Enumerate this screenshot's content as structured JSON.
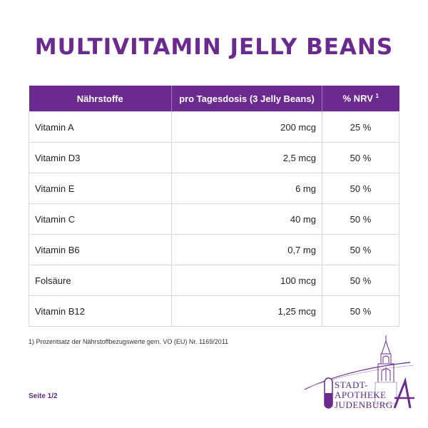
{
  "title": "MULTIVITAMIN JELLY BEANS",
  "table": {
    "headers": [
      "Nährstoffe",
      "pro Tagesdosis (3 Jelly Beans)",
      "% NRV"
    ],
    "header_sup": "1",
    "rows": [
      {
        "name": "Vitamin A",
        "amount": "200 mcg",
        "nrv": "25 %"
      },
      {
        "name": "Vitamin D3",
        "amount": "2,5 mcg",
        "nrv": "50 %"
      },
      {
        "name": "Vitamin E",
        "amount": "6 mg",
        "nrv": "50 %"
      },
      {
        "name": "Vitamin C",
        "amount": "40 mg",
        "nrv": "50 %"
      },
      {
        "name": "Vitamin B6",
        "amount": "0,7 mg",
        "nrv": "50 %"
      },
      {
        "name": "Folsäure",
        "amount": "100 mcg",
        "nrv": "50 %"
      },
      {
        "name": "Vitamin B12",
        "amount": "1,25 mcg",
        "nrv": "50 %"
      }
    ]
  },
  "footnote": "1) Prozentsatz der Nährstoffbezugswerte gem. VO (EU) Nr. 1169/2011",
  "page_label": "Seite 1/2",
  "logo": {
    "line1": "STADT-",
    "line2": "APOTHEKE",
    "line3": "JUDENBURG",
    "mark": "A"
  },
  "colors": {
    "accent": "#6b2a8e"
  }
}
